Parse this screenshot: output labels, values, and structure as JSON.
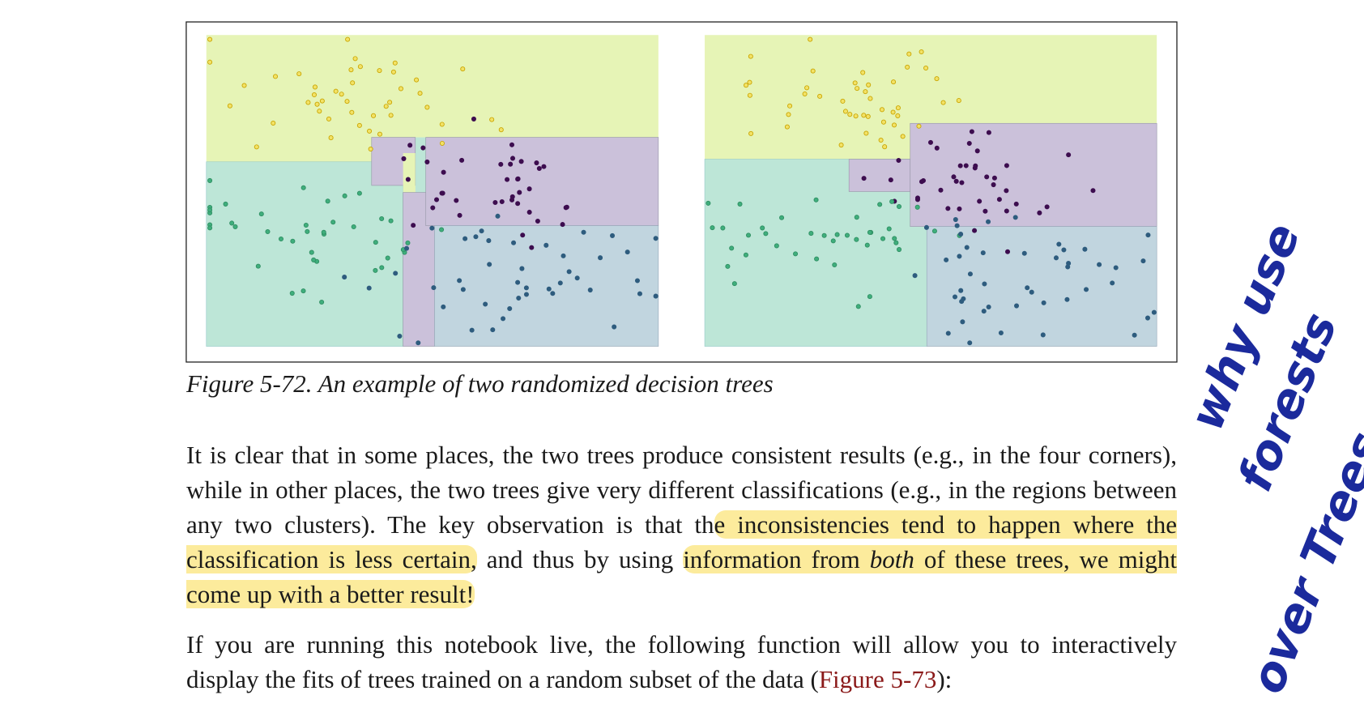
{
  "figure": {
    "caption": "Figure 5-72. An example of two randomized decision trees"
  },
  "paragraphs": [
    {
      "text_1": "It is clear that in some places, the two trees produce consistent results (e.g., in the four corners), while in other places, the two trees give very different classifications (e.g., in the regions between any two clusters). The key observation is that th",
      "highlight_1": "e inconsistencies tend to happen where the classification is less certain,",
      "text_2": " and thus by using ",
      "highlight_2": "information from ",
      "emphasis": "both",
      "highlight_3": " of these trees, we might come up with a better result!"
    },
    {
      "text_1": "If you are running this notebook live, the following function will allow you to interactively display the fits of trees trained on a random subset of the data (",
      "link": "Figure 5-73",
      "text_2": "):"
    }
  ],
  "annotation": {
    "lines": [
      "why use",
      "forests",
      "over Trees"
    ]
  }
}
